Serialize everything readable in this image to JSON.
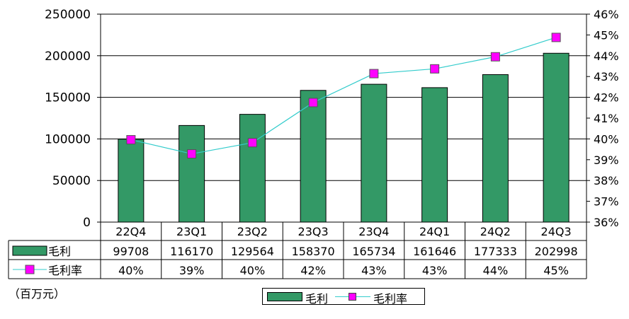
{
  "chart_data": {
    "type": "bar+line",
    "categories": [
      "22Q4",
      "23Q1",
      "23Q2",
      "23Q3",
      "23Q4",
      "24Q1",
      "24Q2",
      "24Q3"
    ],
    "series": [
      {
        "name": "毛利",
        "type": "bar",
        "axis": "left",
        "color": "#339966",
        "values": [
          99708,
          116170,
          129564,
          158370,
          165734,
          161646,
          177333,
          202998
        ],
        "table_labels": [
          "99708",
          "116170",
          "129564",
          "158370",
          "165734",
          "161646",
          "177333",
          "202998"
        ]
      },
      {
        "name": "毛利率",
        "type": "line",
        "axis": "right",
        "line_color": "#33cccc",
        "marker_color": "#ff00ff",
        "values": [
          39.96,
          39.28,
          39.82,
          41.75,
          43.14,
          43.37,
          43.95,
          44.88
        ],
        "table_labels": [
          "40%",
          "39%",
          "40%",
          "42%",
          "43%",
          "43%",
          "44%",
          "45%"
        ]
      }
    ],
    "y_left": {
      "range": [
        0,
        250000
      ],
      "ticks": [
        "0",
        "50000",
        "100000",
        "150000",
        "200000",
        "250000"
      ]
    },
    "y_right": {
      "range": [
        36,
        46
      ],
      "ticks": [
        "36%",
        "37%",
        "38%",
        "39%",
        "40%",
        "41%",
        "42%",
        "43%",
        "44%",
        "45%",
        "46%"
      ]
    },
    "grid": "horizontal",
    "data_table": true,
    "legend_position": "bottom",
    "unit_label": "（百万元）"
  }
}
